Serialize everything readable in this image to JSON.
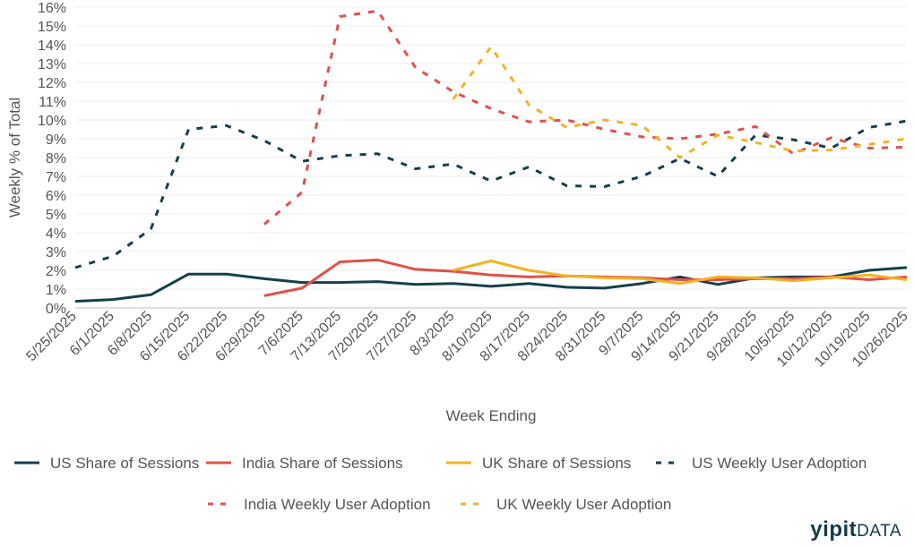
{
  "chart_data": {
    "type": "line",
    "ylabel": "Weekly % of Total",
    "xlabel": "Week Ending",
    "ylim": [
      0,
      16
    ],
    "y_ticks": [
      "0%",
      "1%",
      "2%",
      "3%",
      "4%",
      "5%",
      "6%",
      "7%",
      "8%",
      "9%",
      "10%",
      "11%",
      "12%",
      "13%",
      "14%",
      "15%",
      "16%"
    ],
    "categories": [
      "5/25/2025",
      "6/1/2025",
      "6/8/2025",
      "6/15/2025",
      "6/22/2025",
      "6/29/2025",
      "7/6/2025",
      "7/13/2025",
      "7/20/2025",
      "7/27/2025",
      "8/3/2025",
      "8/10/2025",
      "8/17/2025",
      "8/24/2025",
      "8/31/2025",
      "9/7/2025",
      "9/14/2025",
      "9/21/2025",
      "9/28/2025",
      "10/5/2025",
      "10/12/2025",
      "10/19/2025",
      "10/26/2025"
    ],
    "series": [
      {
        "name": "US Share of Sessions",
        "color": "#163f4d",
        "dash": "solid",
        "values": [
          0.35,
          0.45,
          0.7,
          1.8,
          1.8,
          1.55,
          1.35,
          1.35,
          1.4,
          1.25,
          1.3,
          1.15,
          1.3,
          1.1,
          1.05,
          1.3,
          1.65,
          1.25,
          1.6,
          1.65,
          1.65,
          2.0,
          2.15
        ]
      },
      {
        "name": "India Share of Sessions",
        "color": "#e0514a",
        "dash": "solid",
        "values": [
          null,
          null,
          null,
          null,
          null,
          0.65,
          1.05,
          2.45,
          2.55,
          2.05,
          1.95,
          1.75,
          1.65,
          1.7,
          1.65,
          1.6,
          1.5,
          1.5,
          1.55,
          1.55,
          1.65,
          1.5,
          1.65
        ]
      },
      {
        "name": "UK Share of Sessions",
        "color": "#f0b323",
        "dash": "solid",
        "values": [
          null,
          null,
          null,
          null,
          null,
          null,
          null,
          null,
          null,
          null,
          2.0,
          2.5,
          2.0,
          1.7,
          1.6,
          1.55,
          1.3,
          1.65,
          1.6,
          1.45,
          1.6,
          1.75,
          1.5
        ]
      },
      {
        "name": "US Weekly User Adoption",
        "color": "#163f4d",
        "dash": "dashed",
        "values": [
          2.15,
          2.75,
          4.2,
          9.5,
          9.7,
          8.9,
          7.8,
          8.1,
          8.2,
          7.4,
          7.65,
          6.75,
          7.5,
          6.5,
          6.45,
          7.0,
          7.95,
          7.0,
          9.2,
          8.95,
          8.5,
          9.6,
          9.95
        ]
      },
      {
        "name": "India Weekly User Adoption",
        "color": "#e0514a",
        "dash": "dashed",
        "values": [
          null,
          null,
          null,
          null,
          null,
          4.45,
          6.15,
          15.5,
          15.8,
          12.8,
          11.5,
          10.6,
          9.9,
          10.0,
          9.5,
          9.1,
          9.0,
          9.25,
          9.65,
          8.2,
          9.05,
          8.5,
          8.55
        ]
      },
      {
        "name": "UK Weekly User Adoption",
        "color": "#f0b323",
        "dash": "dashed",
        "values": [
          null,
          null,
          null,
          null,
          null,
          null,
          null,
          null,
          null,
          null,
          11.1,
          13.9,
          10.8,
          9.6,
          10.0,
          9.7,
          8.0,
          9.2,
          8.8,
          8.35,
          8.4,
          8.7,
          9.0
        ]
      }
    ]
  },
  "brand": {
    "name_part1": "yipit",
    "name_part2": "DATA"
  }
}
